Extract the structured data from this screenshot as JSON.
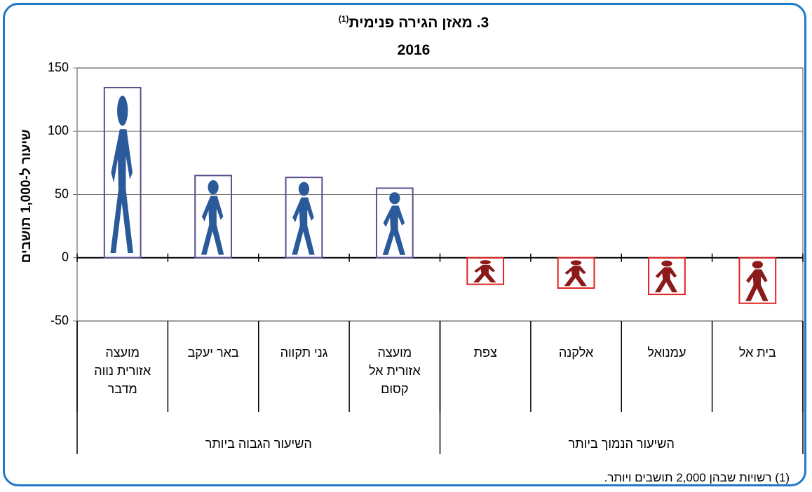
{
  "chart_data": {
    "type": "bar",
    "title": "3. מאזן הגירה פנימית",
    "title_note": "(1)",
    "subtitle": "2016",
    "y_label": "שיעור ל-1,000 תושבים",
    "categories": [
      "מועצה אזורית נווה מדבר",
      "באר יעקב",
      "גני תקווה",
      "מועצה אזורית אל קסום",
      "צפת",
      "אלקנה",
      "עמנואל",
      "בית אל"
    ],
    "groups": [
      {
        "label": "השיעור הגבוה ביותר",
        "size": 4
      },
      {
        "label": "השיעור הנמוך ביותר",
        "size": 4
      }
    ],
    "values": [
      134.5,
      65,
      63.5,
      55,
      -21,
      -24,
      -29,
      -36
    ],
    "color": "#2a5a9a",
    "negative_color": "#8b1a1a",
    "ylim": [
      -50,
      150
    ],
    "yticks": [
      -50,
      0,
      50,
      100,
      150
    ],
    "grid": true,
    "footnote": "(1) רשויות שבהן 2,000 תושבים ויותר."
  }
}
